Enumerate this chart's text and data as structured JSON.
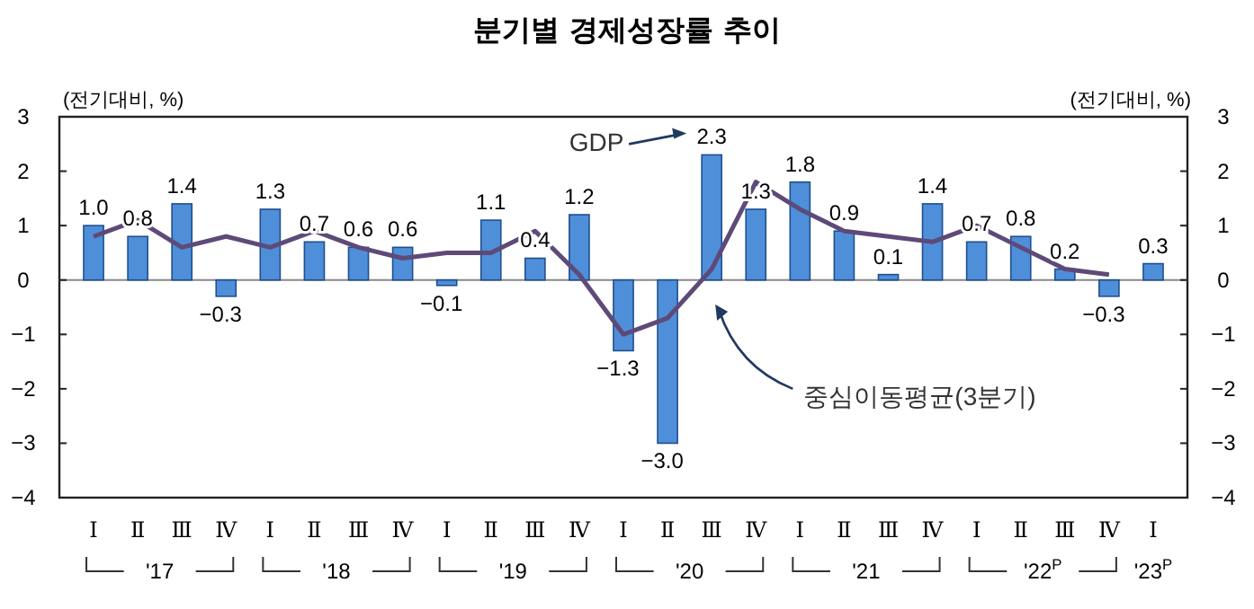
{
  "chart_data": {
    "type": "bar",
    "title": "분기별 경제성장률 추이",
    "ylabel": "(전기대비, %)",
    "y2label": "(전기대비, %)",
    "categories": [
      "Ⅰ",
      "Ⅱ",
      "Ⅲ",
      "Ⅳ",
      "Ⅰ",
      "Ⅱ",
      "Ⅲ",
      "Ⅳ",
      "Ⅰ",
      "Ⅱ",
      "Ⅲ",
      "Ⅳ",
      "Ⅰ",
      "Ⅱ",
      "Ⅲ",
      "Ⅳ",
      "Ⅰ",
      "Ⅱ",
      "Ⅲ",
      "Ⅳ",
      "Ⅰ",
      "Ⅱ",
      "Ⅲ",
      "Ⅳ",
      "Ⅰ"
    ],
    "series": [
      {
        "name": "GDP",
        "color": "#4f8fd9",
        "values": [
          1.0,
          0.8,
          1.4,
          -0.3,
          1.3,
          0.7,
          0.6,
          0.6,
          -0.1,
          1.1,
          0.4,
          1.2,
          -1.3,
          -3.0,
          2.3,
          1.3,
          1.8,
          0.9,
          0.1,
          1.4,
          0.7,
          0.8,
          0.2,
          -0.3,
          0.3
        ]
      },
      {
        "name": "중심이동평균(3분기)",
        "type": "line",
        "color": "#5e4a78",
        "values": [
          0.8,
          1.1,
          0.6,
          0.8,
          0.6,
          0.9,
          0.6,
          0.4,
          0.5,
          0.5,
          0.9,
          0.1,
          -1.0,
          -0.7,
          0.2,
          1.8,
          1.3,
          0.9,
          0.8,
          0.7,
          1.0,
          0.6,
          0.2,
          0.1,
          null
        ]
      }
    ],
    "value_labels": [
      "1.0",
      "0.8",
      "1.4",
      "−0.3",
      "1.3",
      "0.7",
      "0.6",
      "0.6",
      "−0.1",
      "1.1",
      "0.4",
      "1.2",
      "−1.3",
      "−3.0",
      "2.3",
      "1.3",
      "1.8",
      "0.9",
      "0.1",
      "1.4",
      "0.7",
      "0.8",
      "0.2",
      "−0.3",
      "0.3"
    ],
    "annotations": [
      "'17",
      "'18",
      "'19",
      "'20",
      "'21",
      "'22$^{P}$",
      "'23$^{P}$"
    ],
    "ylim": [
      -4,
      3
    ],
    "yticks": [
      -4,
      -3,
      -2,
      -1,
      0,
      1,
      2,
      3
    ],
    "y2lim": [
      -4,
      3
    ],
    "y2ticks": [
      -4,
      -3,
      -2,
      -1,
      0,
      1,
      2,
      3
    ],
    "ref_lines": [
      {
        "axis": "y",
        "value": 0,
        "color": "#888888"
      }
    ],
    "grid": false,
    "legend": false,
    "marker": "none",
    "line_style": "solid"
  }
}
